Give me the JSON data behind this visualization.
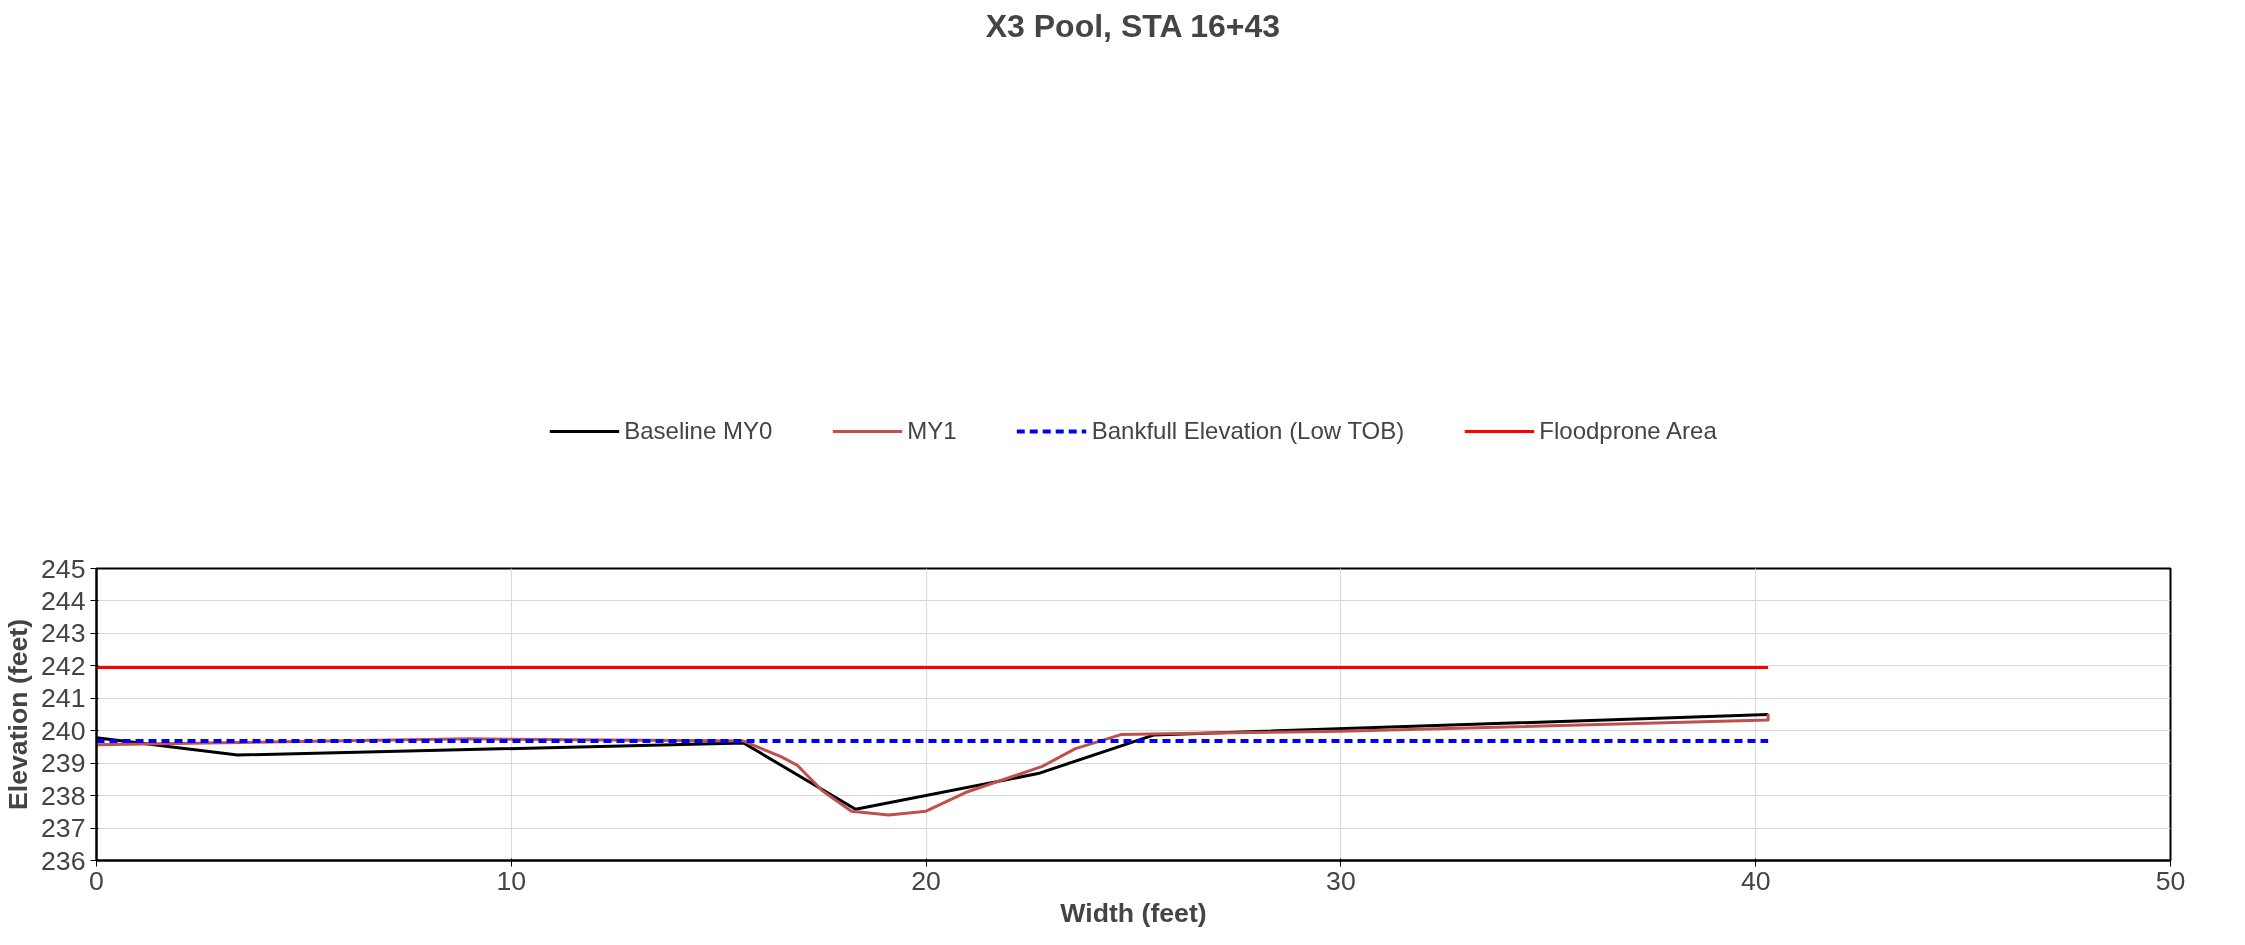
{
  "chart_data": {
    "type": "line",
    "title": "X3 Pool, STA 16+43",
    "xlabel": "Width (feet)",
    "ylabel": "Elevation (feet)",
    "xlim": [
      0,
      50
    ],
    "xticks": [
      0,
      10,
      20,
      30,
      40,
      50
    ],
    "ylim": [
      236,
      245
    ],
    "yticks": [
      236,
      237,
      238,
      239,
      240,
      241,
      242,
      243,
      244,
      245
    ],
    "grid": true,
    "legend": "top",
    "marker": "none",
    "series": [
      {
        "name": "Baseline MY0",
        "color": "#000000",
        "x": [
          0,
          3.4,
          15.6,
          18.3,
          22.7,
          25.5,
          40.3
        ],
        "values": [
          239.78,
          239.25,
          239.62,
          237.58,
          238.68,
          239.87,
          240.5
        ]
      },
      {
        "name": "MY1",
        "color": "#c0504d",
        "x": [
          0,
          9,
          15.6,
          16.5,
          16.9,
          17.5,
          18.2,
          19.1,
          20,
          21,
          22.8,
          23.6,
          24.7,
          26.5,
          30,
          40.3,
          40.3
        ],
        "values": [
          239.57,
          239.75,
          239.68,
          239.2,
          238.93,
          238.15,
          237.52,
          237.4,
          237.52,
          238.12,
          238.9,
          239.45,
          239.88,
          239.92,
          239.98,
          240.33,
          240.52
        ]
      },
      {
        "name": "Bankfull Elevation (Low TOB)",
        "color": "#0000ff",
        "line_style": "dashed",
        "x": [
          0,
          40.3
        ],
        "values": [
          239.68,
          239.68
        ]
      },
      {
        "name": "Floodprone Area",
        "color": "#ff0000",
        "x": [
          0,
          40.3
        ],
        "values": [
          241.95,
          241.95
        ]
      }
    ]
  }
}
